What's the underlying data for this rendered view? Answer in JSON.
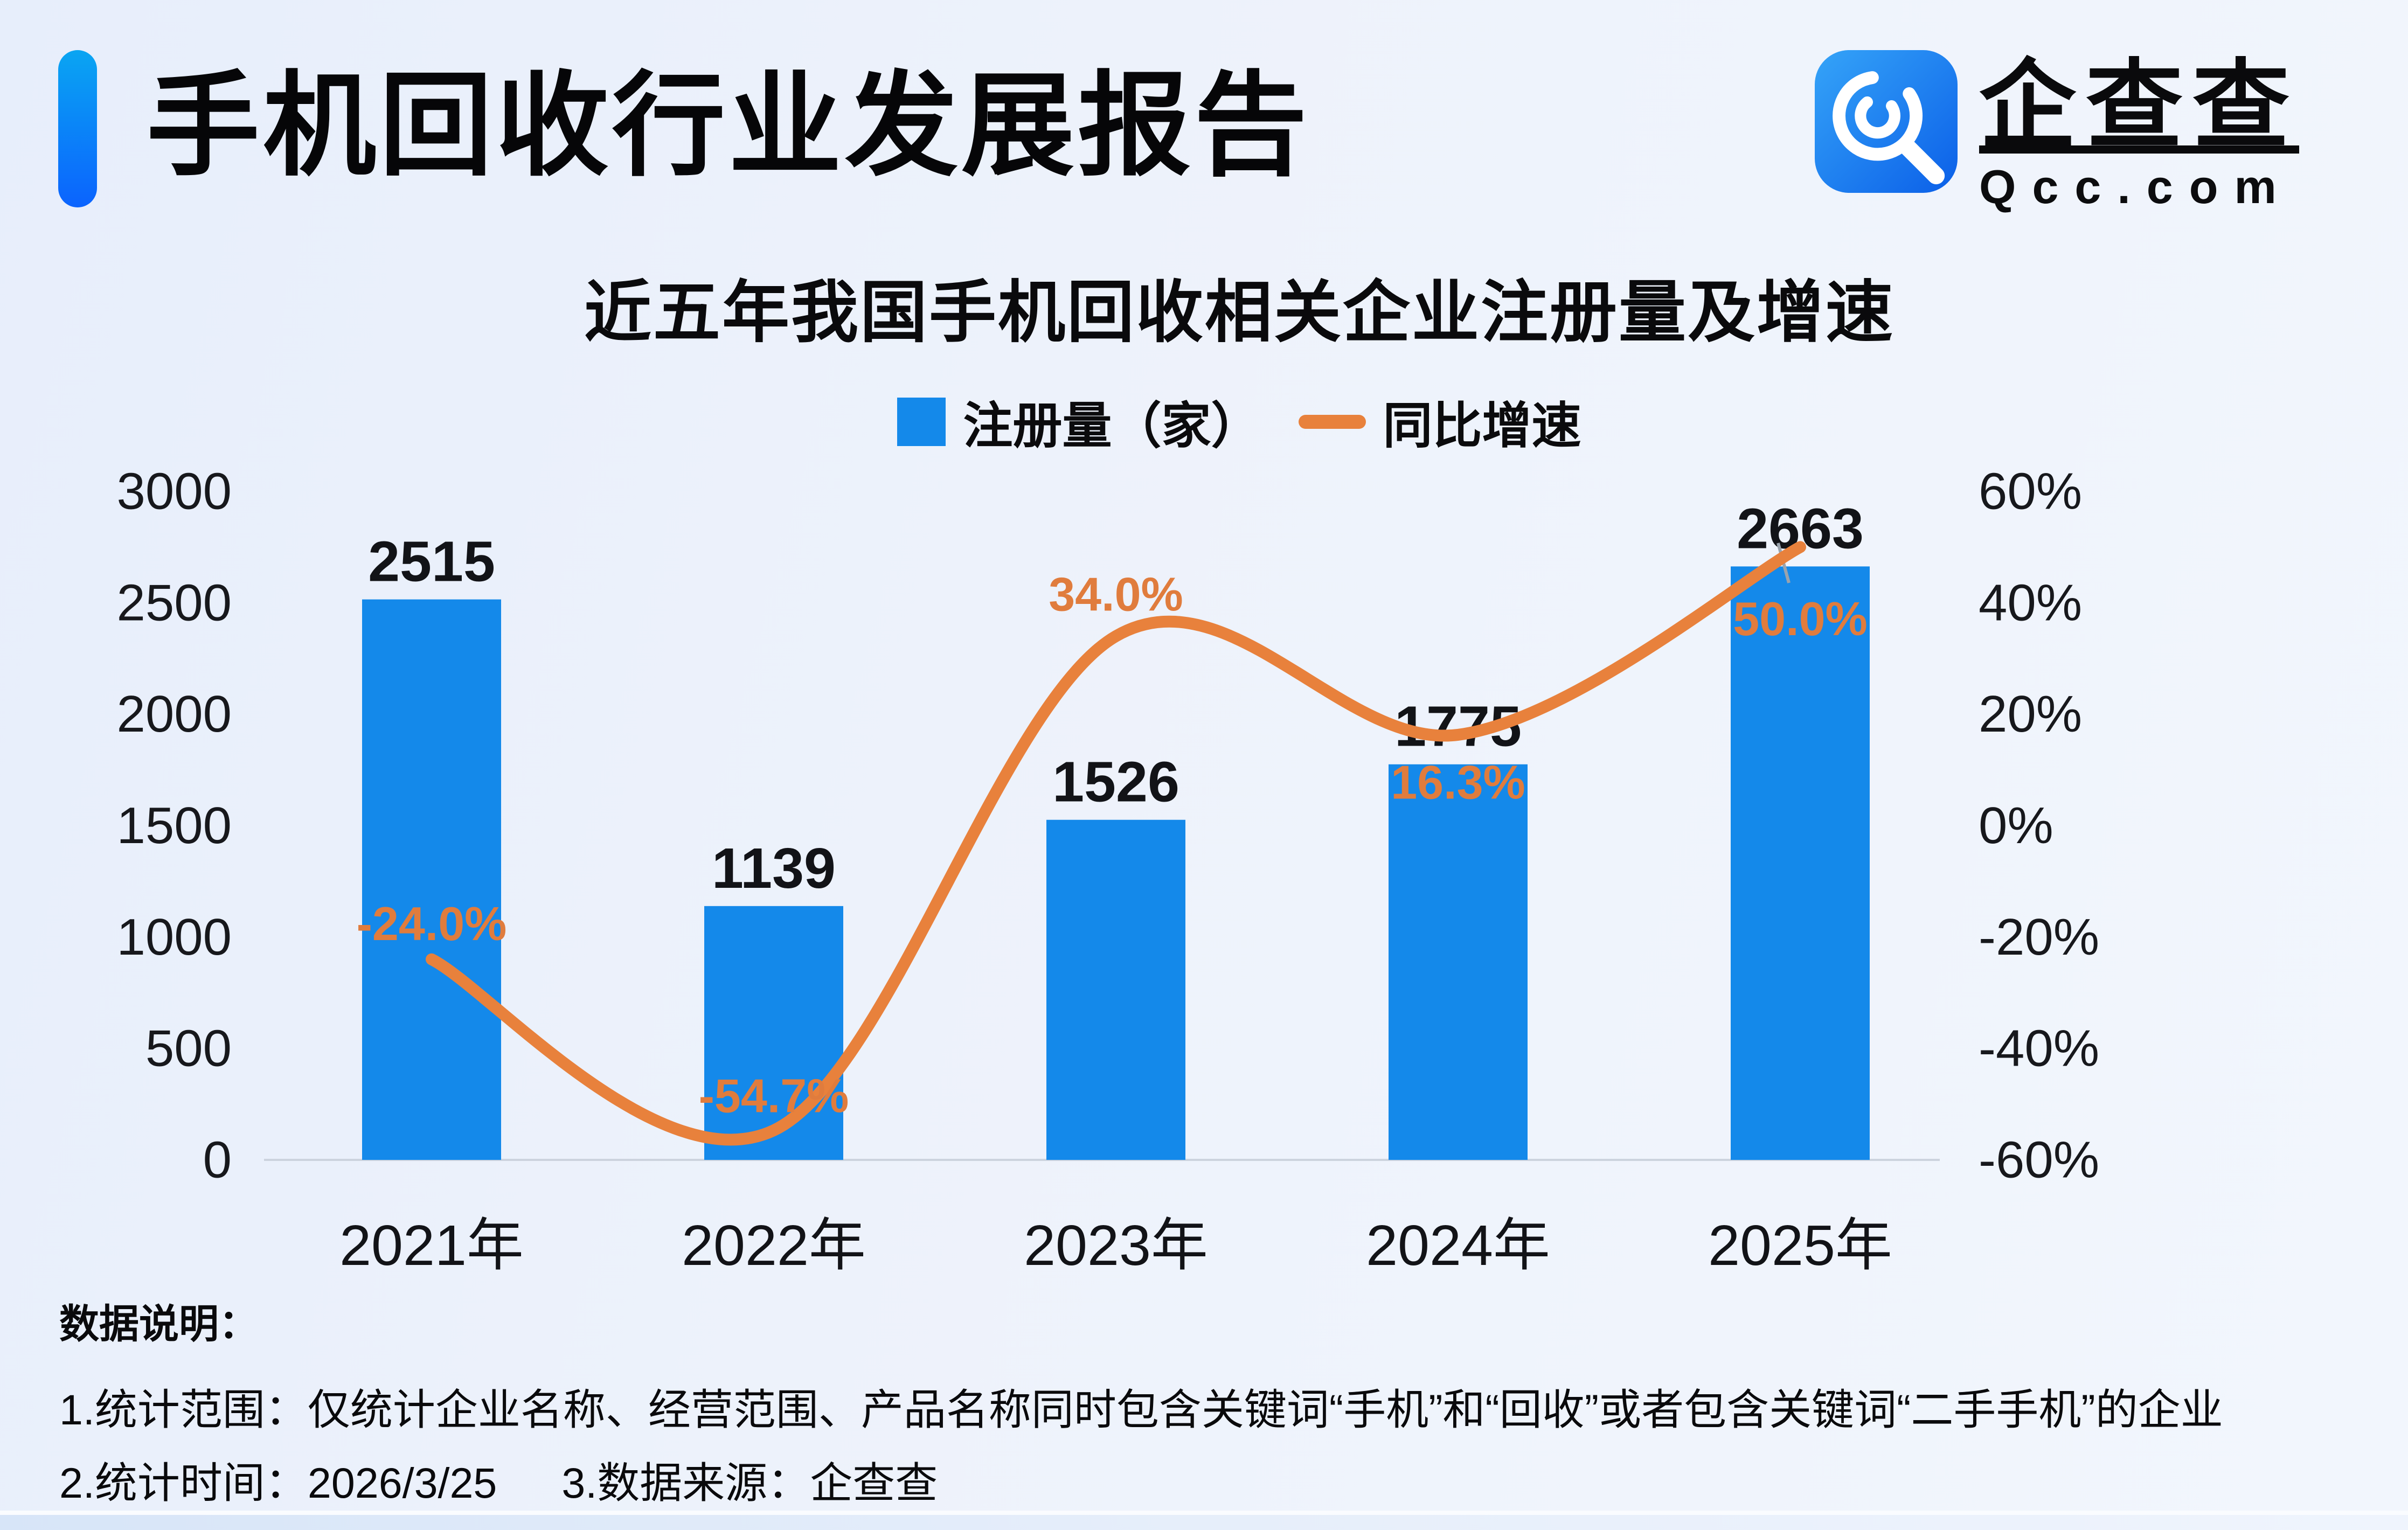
{
  "header": {
    "title": "手机回收行业发展报告",
    "logo": {
      "brand": "企查查",
      "domain": "Qcc.com"
    }
  },
  "chart": {
    "title": "近五年我国手机回收相关企业注册量及增速"
  },
  "chart_data": {
    "type": "bar+line combo",
    "title": "近五年我国手机回收相关企业注册量及增速",
    "categories": [
      "2021年",
      "2022年",
      "2023年",
      "2024年",
      "2025年"
    ],
    "series": [
      {
        "name": "注册量（家）",
        "type": "bar",
        "axis": "left",
        "color": "#1489ea",
        "values": [
          2515,
          1139,
          1526,
          1775,
          2663
        ],
        "labels": [
          "2515",
          "1139",
          "1526",
          "1775",
          "2663"
        ]
      },
      {
        "name": "同比增速",
        "type": "line",
        "axis": "right",
        "color": "#e8813c",
        "values": [
          -24.0,
          -54.7,
          34.0,
          16.3,
          50.0
        ],
        "labels": [
          "-24.0%",
          "-54.7%",
          "34.0%",
          "16.3%",
          "50.0%"
        ]
      }
    ],
    "left_axis": {
      "range": [
        0,
        3000
      ],
      "ticks": [
        0,
        500,
        1000,
        1500,
        2000,
        2500,
        3000
      ]
    },
    "right_axis": {
      "range": [
        -60,
        60
      ],
      "ticks": [
        "-60%",
        "-40%",
        "-20%",
        "0%",
        "20%",
        "40%",
        "60%"
      ]
    },
    "grid": false,
    "legend_position": "top-center"
  },
  "footer": {
    "heading": "数据说明：",
    "note1": "1.统计范围：仅统计企业名称、经营范围、产品名称同时包含关键词“手机”和“回收”或者包含关键词“二手手机”的企业",
    "note2_time": "2.统计时间：2026/3/25",
    "note2_source": "3.数据来源：企查查"
  },
  "colors": {
    "bar": "#1489ea",
    "line": "#e8813c",
    "accent_top": "#0aa5f2",
    "accent_bottom": "#0b63fe",
    "background": "#eef3fb",
    "baseline": "#ccd3de"
  }
}
